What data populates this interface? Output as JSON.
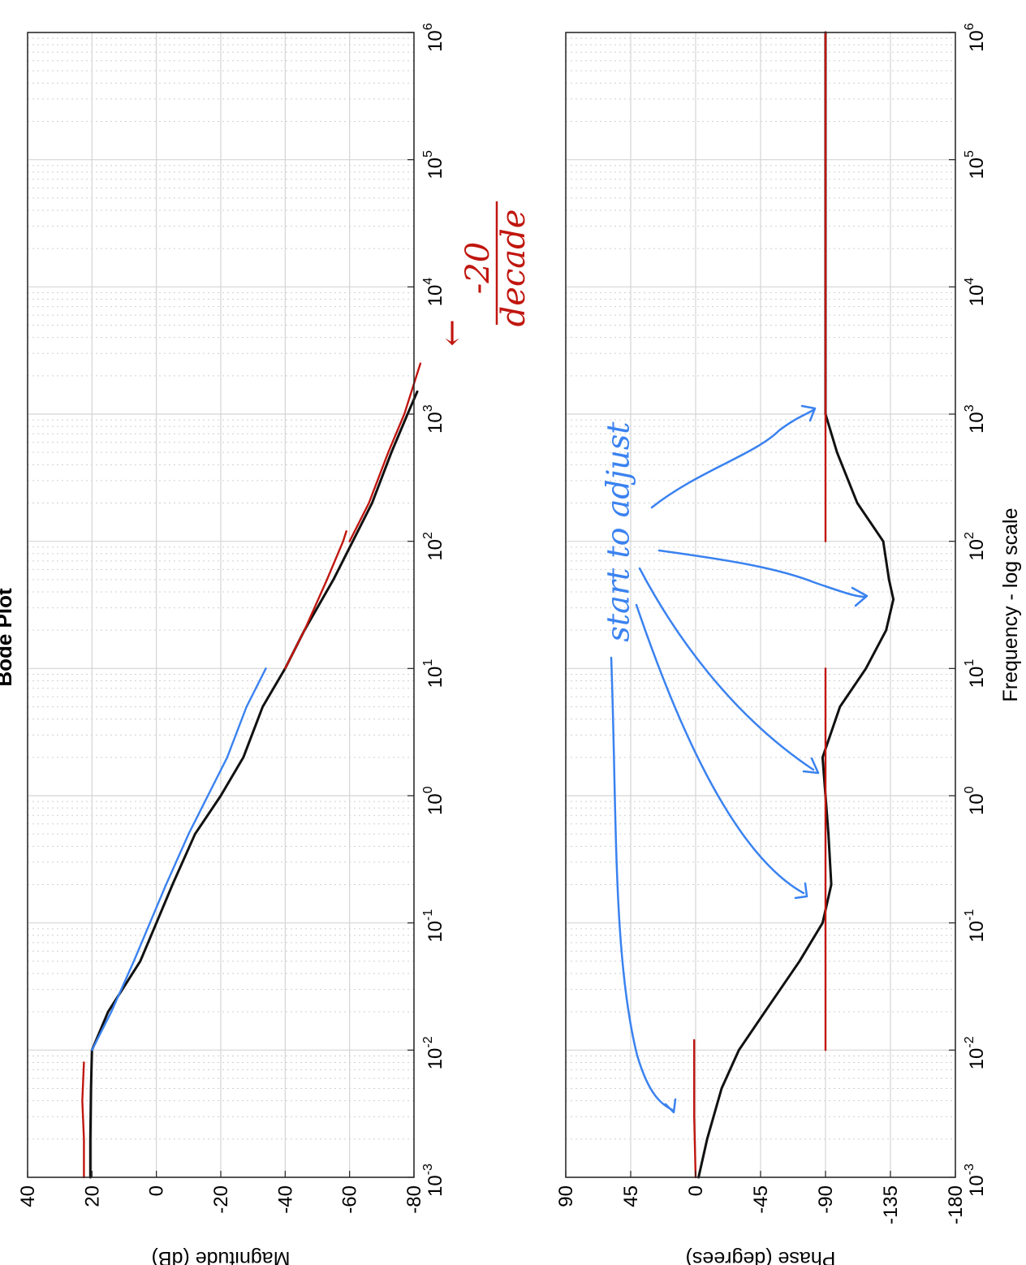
{
  "colors": {
    "black": "#111111",
    "red": "#c0160f",
    "blue": "#3a82f0",
    "grid_major": "#d4d4d4",
    "grid_minor": "#cfcfcf"
  },
  "chart_data": [
    {
      "type": "line",
      "title": "Bode Plot",
      "xlabel": "",
      "ylabel": "Magnitude (dB)",
      "x_scale": "log",
      "xlim": [
        0.001,
        1000000
      ],
      "ylim": [
        -80,
        40
      ],
      "y_ticks": [
        40,
        20,
        0,
        -20,
        -40,
        -60,
        -80
      ],
      "x_ticks": [
        {
          "base": "10",
          "exp": "-3"
        },
        {
          "base": "10",
          "exp": "-2"
        },
        {
          "base": "10",
          "exp": "-1"
        },
        {
          "base": "10",
          "exp": "0"
        },
        {
          "base": "10",
          "exp": "1"
        },
        {
          "base": "10",
          "exp": "2"
        },
        {
          "base": "10",
          "exp": "3"
        },
        {
          "base": "10",
          "exp": "4"
        },
        {
          "base": "10",
          "exp": "5"
        },
        {
          "base": "10",
          "exp": "6"
        }
      ],
      "grid": true,
      "orientation": "rotated 90 degrees clockwise",
      "series": [
        {
          "color": "black",
          "x": [
            0.001,
            0.002,
            0.005,
            0.01,
            0.02,
            0.05,
            0.1,
            0.2,
            0.5,
            1,
            2,
            5,
            10,
            20,
            50,
            100,
            200,
            500,
            1000,
            1500
          ],
          "y": [
            20.5,
            20.5,
            20.3,
            20,
            15,
            5,
            0,
            -5,
            -12,
            -20,
            -27,
            -33,
            -40,
            -46,
            -55,
            -61,
            -67,
            -73,
            -78,
            -81
          ]
        },
        {
          "color": "red",
          "x": [
            0.001,
            0.002,
            0.004,
            0.008
          ],
          "y": [
            22.5,
            22.5,
            23,
            22.5
          ]
        },
        {
          "color": "blue",
          "x": [
            0.01,
            0.02,
            0.05,
            0.1,
            0.2,
            0.5,
            1,
            2,
            5,
            10
          ],
          "y": [
            20,
            14,
            7,
            2,
            -3,
            -10,
            -16,
            -22,
            -28,
            -34
          ]
        },
        {
          "color": "red",
          "x": [
            10,
            20,
            50,
            100,
            120
          ],
          "y": [
            -40,
            -46,
            -53,
            -58,
            -59
          ]
        },
        {
          "color": "red",
          "x": [
            100,
            200,
            500,
            1000,
            2500
          ],
          "y": [
            -60,
            -66,
            -72,
            -77,
            -82
          ]
        }
      ]
    },
    {
      "type": "line",
      "title": "",
      "xlabel": "Frequency - log scale",
      "ylabel": "Phase (degrees)",
      "x_scale": "log",
      "xlim": [
        0.001,
        1000000
      ],
      "ylim": [
        -180,
        90
      ],
      "y_ticks": [
        90,
        45,
        0,
        -45,
        -90,
        -135,
        -180
      ],
      "x_ticks": [
        {
          "base": "10",
          "exp": "-3"
        },
        {
          "base": "10",
          "exp": "-2"
        },
        {
          "base": "10",
          "exp": "-1"
        },
        {
          "base": "10",
          "exp": "0"
        },
        {
          "base": "10",
          "exp": "1"
        },
        {
          "base": "10",
          "exp": "2"
        },
        {
          "base": "10",
          "exp": "3"
        },
        {
          "base": "10",
          "exp": "4"
        },
        {
          "base": "10",
          "exp": "5"
        },
        {
          "base": "10",
          "exp": "6"
        }
      ],
      "grid": true,
      "orientation": "rotated 90 degrees clockwise",
      "series": [
        {
          "color": "black",
          "x": [
            0.001,
            0.002,
            0.005,
            0.01,
            0.02,
            0.05,
            0.1,
            0.2,
            0.5,
            1,
            2,
            5,
            10,
            20,
            35,
            50,
            100,
            200,
            500,
            1000,
            10000,
            100000,
            1000000
          ],
          "y": [
            -2,
            -8,
            -18,
            -30,
            -48,
            -72,
            -88,
            -94,
            -92,
            -90,
            -88,
            -100,
            -118,
            -132,
            -137,
            -134,
            -130,
            -112,
            -98,
            -90,
            -90,
            -90,
            -90
          ]
        },
        {
          "color": "red",
          "x": [
            0.001,
            0.003,
            0.012
          ],
          "y": [
            0,
            1,
            1
          ]
        },
        {
          "color": "red",
          "x": [
            0.01,
            0.1,
            1,
            10
          ],
          "y": [
            -90,
            -90,
            -90,
            -90
          ]
        },
        {
          "color": "red",
          "x": [
            100,
            1000,
            10000,
            100000,
            1000000
          ],
          "y": [
            -90,
            -90,
            -90,
            -90,
            -90
          ]
        }
      ]
    }
  ],
  "annotations": {
    "red_slope_arrow": "←",
    "red_slope_numerator": "-20",
    "red_slope_denominator": "decade",
    "blue_note": "start to adjust"
  }
}
